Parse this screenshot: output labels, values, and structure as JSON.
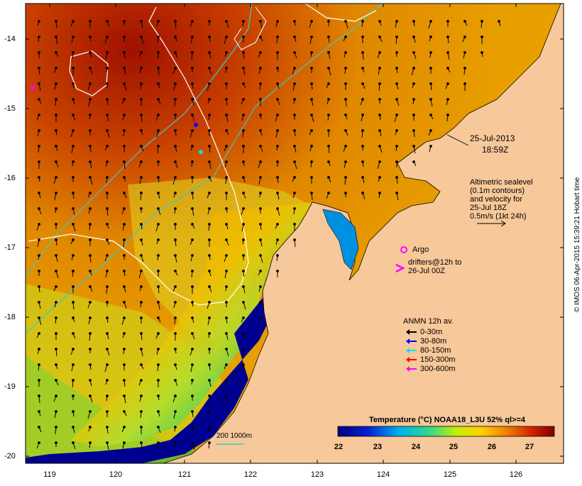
{
  "map": {
    "date_label": "25-Jul-2013",
    "time_label": "18:59Z",
    "x_ticks": [
      "119",
      "120",
      "121",
      "122",
      "123",
      "124",
      "125",
      "126"
    ],
    "y_ticks": [
      "-14",
      "-15",
      "-16",
      "-17",
      "-18",
      "-19",
      "-20"
    ],
    "altimetry_text": [
      "Altimetric sealevel",
      "(0.1m contours)",
      "and velocity for",
      "25-Jul 18Z",
      "0.5m/s (1kt 24h)"
    ],
    "argo_label": "Argo",
    "drifters_text": [
      "drifters@12h to",
      "26-Jul 00Z"
    ],
    "anmn_title": "ANMN 12h av.",
    "anmn_legend": [
      {
        "label": "0-30m",
        "color": "#000000"
      },
      {
        "label": "30-80m",
        "color": "#0000ff"
      },
      {
        "label": "80-150m",
        "color": "#00e5e5"
      },
      {
        "label": "150-300m",
        "color": "#ff0000"
      },
      {
        "label": "300-600m",
        "color": "#ff00ff"
      }
    ],
    "isobath_label": "200  1000m",
    "colorbar_title": "Temperature (°C) NOAA18_L3U 52% ql>=4",
    "colorbar_ticks": [
      "22",
      "23",
      "24",
      "25",
      "26",
      "27"
    ],
    "credit": "© IMOS 06-Apr-2015 15:39:21 Hobart time",
    "colors": {
      "land": "#f7c89a",
      "isobath_200": "#40c8c0",
      "contour": "#ffffff",
      "argo": "#ff00ff"
    }
  }
}
